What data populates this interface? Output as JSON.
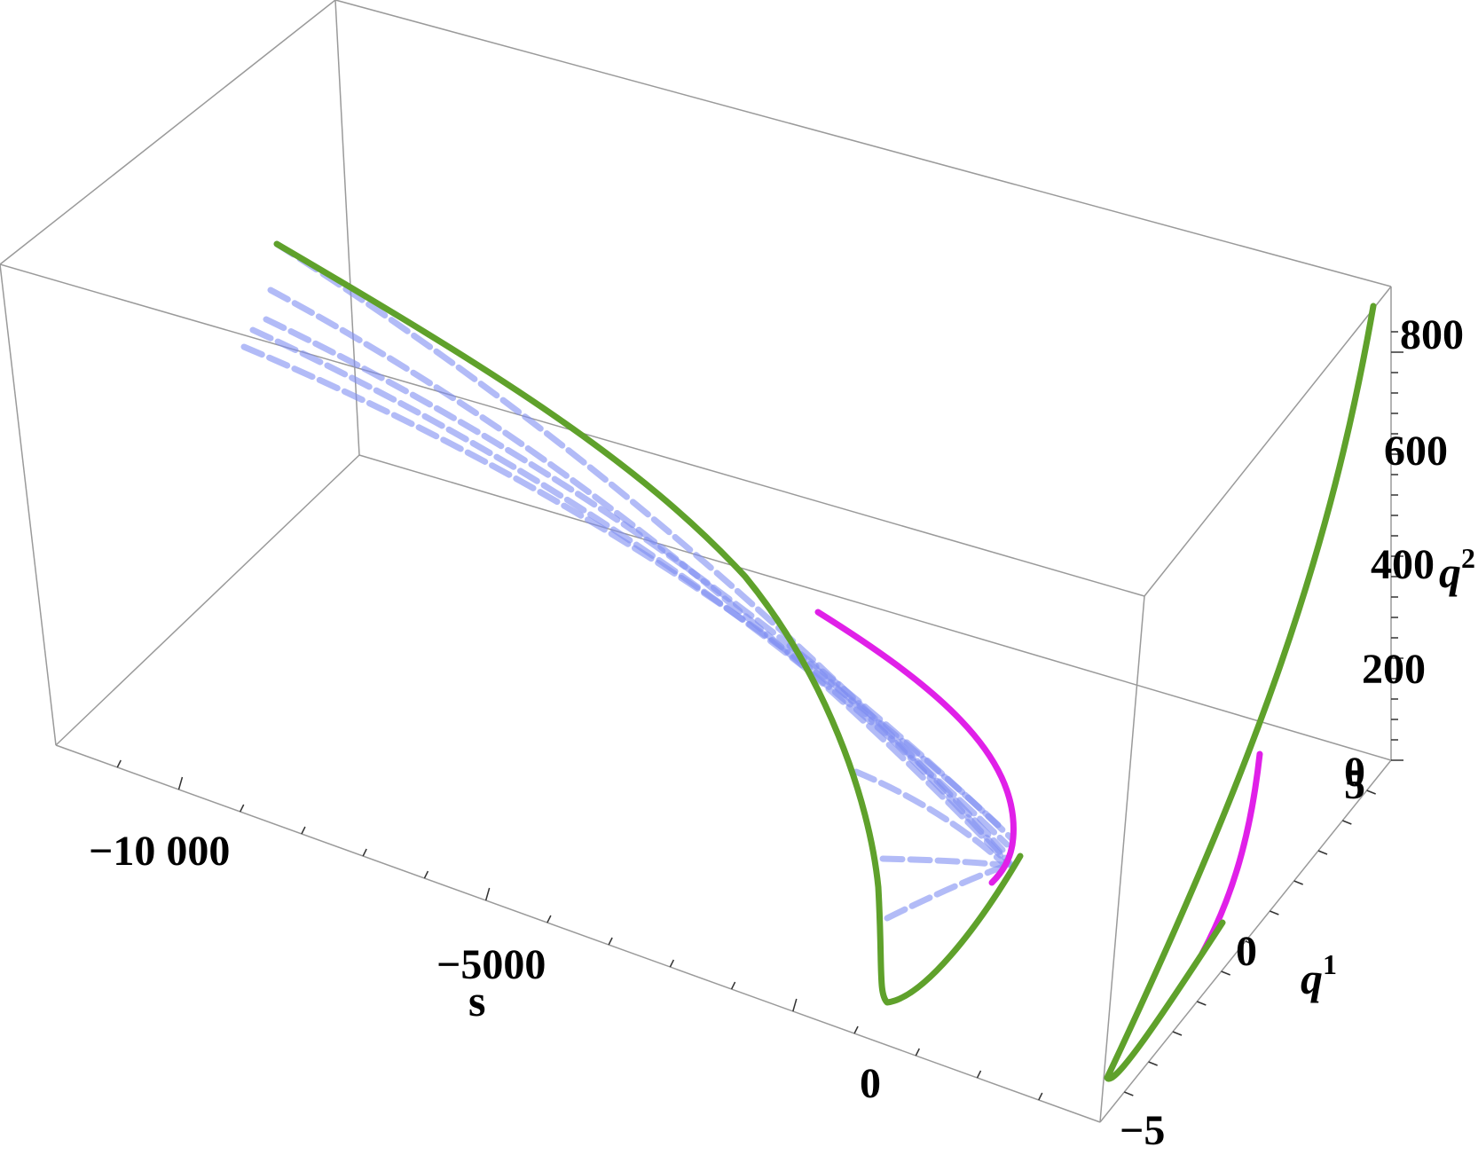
{
  "chart_data": {
    "type": "line",
    "projection": "3d",
    "title": "",
    "axes": {
      "s": {
        "label": "s",
        "ticks": [
          {
            "value": -10000,
            "label": "−10 000"
          },
          {
            "value": -5000,
            "label": "−5000"
          },
          {
            "value": 0,
            "label": "0"
          }
        ]
      },
      "q1": {
        "label": "q",
        "label_sup": "1",
        "ticks": [
          {
            "value": -5,
            "label": "−5"
          },
          {
            "value": 0,
            "label": "0"
          },
          {
            "value": 5,
            "label": "5"
          }
        ]
      },
      "q2": {
        "label": "q",
        "label_sup": "2",
        "ticks": [
          {
            "value": 0,
            "label": "0"
          },
          {
            "value": 200,
            "label": "200"
          },
          {
            "value": 400,
            "label": "400"
          },
          {
            "value": 600,
            "label": "600"
          },
          {
            "value": 800,
            "label": "800"
          }
        ]
      }
    },
    "grid": false,
    "box": true,
    "series": [
      {
        "color": "#5fa12b",
        "style": "solid",
        "description_points": "green trajectory"
      },
      {
        "color": "#e020e8",
        "style": "solid"
      },
      {
        "color": "#7f8ef2",
        "style": "dashed",
        "count": 7
      }
    ]
  }
}
